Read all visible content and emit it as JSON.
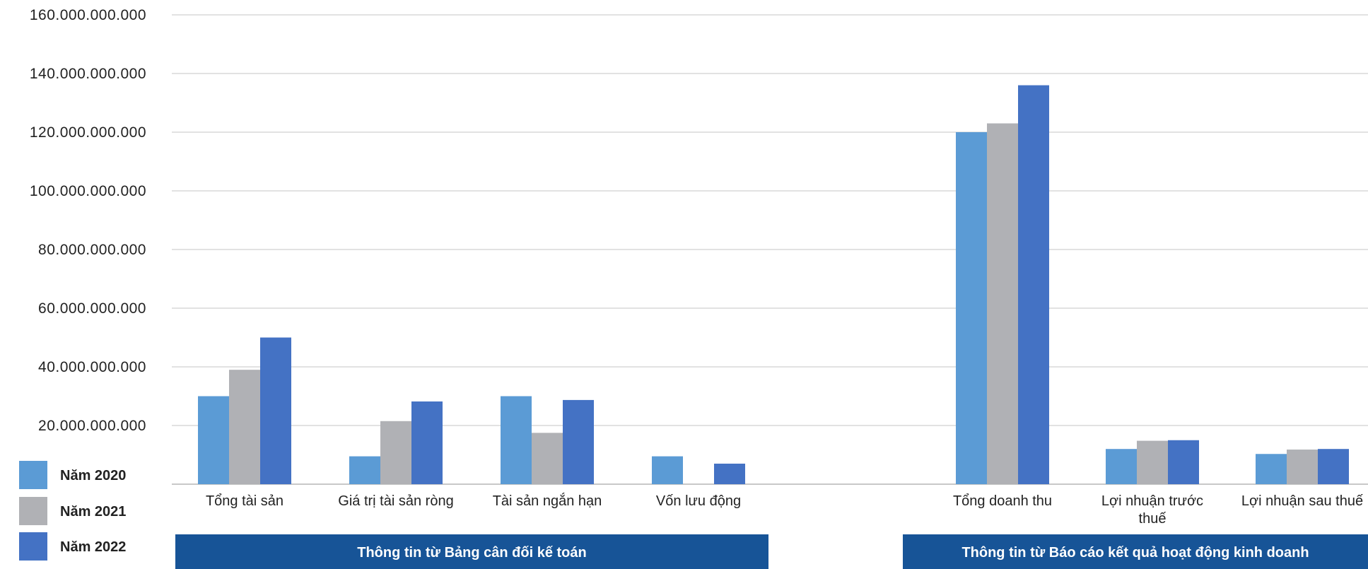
{
  "chart_data": {
    "type": "bar",
    "ylim": [
      0,
      160000000000
    ],
    "y_ticks": [
      {
        "value": 160000000000,
        "label": "160.000.000.000"
      },
      {
        "value": 140000000000,
        "label": "140.000.000.000"
      },
      {
        "value": 120000000000,
        "label": "120.000.000.000"
      },
      {
        "value": 100000000000,
        "label": "100.000.000.000"
      },
      {
        "value": 80000000000,
        "label": "80.000.000.000"
      },
      {
        "value": 60000000000,
        "label": "60.000.000.000"
      },
      {
        "value": 40000000000,
        "label": "40.000.000.000"
      },
      {
        "value": 20000000000,
        "label": "20.000.000.000"
      }
    ],
    "grid": true,
    "legend_position": "bottom-left",
    "categories": [
      {
        "label": [
          "Tổng tài sản"
        ]
      },
      {
        "label": [
          "Giá trị tài sản ròng"
        ]
      },
      {
        "label": [
          "Tài sản ngắn hạn"
        ]
      },
      {
        "label": [
          "Vốn lưu động"
        ]
      },
      {
        "label": [
          "Tổng doanh thu"
        ]
      },
      {
        "label": [
          "Lợi nhuận trước",
          "thuế"
        ]
      },
      {
        "label": [
          "Lợi nhuận sau thuế"
        ]
      }
    ],
    "series": [
      {
        "name": "Năm 2020",
        "color": "#5b9bd5",
        "values": [
          30000000000,
          9500000000,
          30000000000,
          9500000000,
          120000000000,
          12000000000,
          10300000000
        ]
      },
      {
        "name": "Năm 2021",
        "color": "#b0b1b5",
        "values": [
          39000000000,
          21500000000,
          17500000000,
          0,
          123000000000,
          14800000000,
          11800000000
        ]
      },
      {
        "name": "Năm 2022",
        "color": "#4472c4",
        "values": [
          50000000000,
          28200000000,
          28700000000,
          7000000000,
          136000000000,
          15000000000,
          12000000000
        ]
      }
    ],
    "groups": [
      {
        "label": "Thông tin từ Bảng cân đối kế toán",
        "color": "#175497"
      },
      {
        "label": "Thông tin từ Báo cáo kết quả hoạt động kinh doanh",
        "color": "#175497"
      }
    ]
  }
}
